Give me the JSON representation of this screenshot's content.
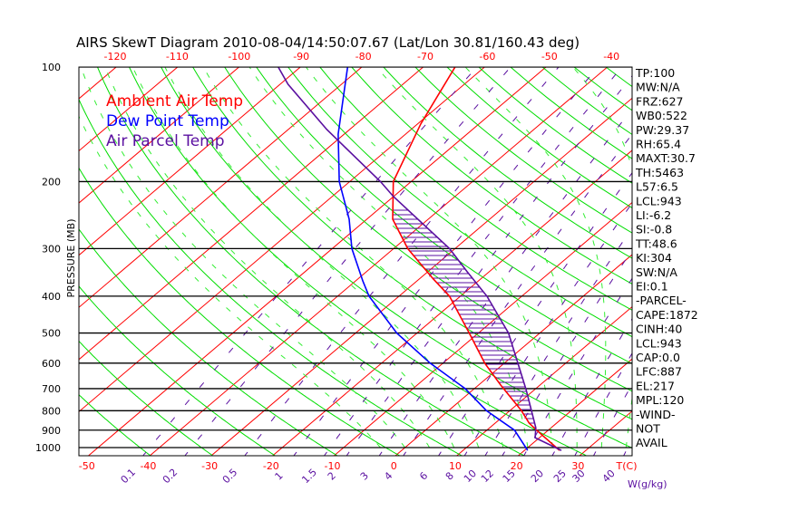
{
  "title": "AIRS SkewT Diagram 2010-08-04/14:50:07.67 (Lat/Lon 30.81/160.43 deg)",
  "colors": {
    "ambient": "#ff0000",
    "dewpoint": "#0000ff",
    "parcel": "#5a0fa0",
    "dry_adiabat": "#00dd00",
    "moist_adiabat": "#33ee33",
    "mixing_ratio": "#5a0fa0",
    "isotherm": "#ff0000",
    "isobar": "#000000"
  },
  "legend": [
    "Ambient Air Temp",
    "Dew Point Temp",
    "Air Parcel Temp"
  ],
  "indices": [
    "TP:100",
    "MW:N/A",
    "FRZ:627",
    "WB0:522",
    "PW:29.37",
    "RH:65.4",
    "MAXT:30.7",
    "TH:5463",
    "L57:6.5",
    "LCL:943",
    "LI:-6.2",
    "SI:-0.8",
    "TT:48.6",
    "KI:304",
    "SW:N/A",
    "EI:0.1",
    "-PARCEL-",
    "CAPE:1872",
    "CINH:40",
    "LCL:943",
    "CAP:0.0",
    "LFC:887",
    "EL:217",
    "MPL:120",
    "-WIND-",
    "NOT",
    "AVAIL"
  ],
  "chart_data": {
    "type": "line",
    "title": "AIRS SkewT Diagram 2010-08-04/14:50:07.67 (Lat/Lon 30.81/160.43 deg)",
    "ylabel": "PRESSURE (MB)",
    "xlabel": "T(C)",
    "y_scale": "log",
    "ylim": [
      1050,
      100
    ],
    "pressure_ticks": [
      "100",
      "200",
      "300",
      "400",
      "500",
      "600",
      "700",
      "800",
      "900",
      "1000"
    ],
    "pressure_values": [
      100,
      200,
      300,
      400,
      500,
      600,
      700,
      800,
      900,
      1000
    ],
    "bottom_temp_ticks": [
      "-50",
      "-40",
      "-30",
      "-20",
      "-10",
      "0",
      "10",
      "20",
      "30"
    ],
    "bottom_temp_values": [
      -50,
      -40,
      -30,
      -20,
      -10,
      0,
      10,
      20,
      30
    ],
    "top_temp_ticks": [
      "-120",
      "-110",
      "-100",
      "-90",
      "-80",
      "-70",
      "-60",
      "-50",
      "-40"
    ],
    "top_temp_values": [
      -120,
      -110,
      -100,
      -90,
      -80,
      -70,
      -60,
      -50,
      -40
    ],
    "mixing_ratio_label": "W(g/kg)",
    "mixing_ratio_ticks": [
      "0.1",
      "0.2",
      "0.5",
      "1",
      "1.5",
      "2",
      "3",
      "4",
      "6",
      "8",
      "10",
      "12",
      "15",
      "20",
      "25",
      "30",
      "40"
    ],
    "mixing_ratio_values": [
      0.1,
      0.2,
      0.5,
      1,
      1.5,
      2,
      3,
      4,
      6,
      8,
      10,
      12,
      15,
      20,
      25,
      30,
      40
    ],
    "series": [
      {
        "name": "Ambient Air Temp",
        "p": [
          1017,
          900,
          862,
          800,
          685,
          600,
          500,
          400,
          360,
          300,
          251,
          200,
          141,
          100
        ],
        "t": [
          25.7,
          18.1,
          15.5,
          11.9,
          3.6,
          -3.2,
          -11.5,
          -21.8,
          -27.8,
          -37.7,
          -45.8,
          -52.9,
          -59.5,
          -64.8
        ]
      },
      {
        "name": "Dew Point Temp",
        "p": [
          1017,
          900,
          800,
          700,
          600,
          500,
          400,
          365,
          300,
          251,
          200,
          150,
          111,
          100
        ],
        "t": [
          20.5,
          14.5,
          6.2,
          -1.5,
          -12.1,
          -23.3,
          -34.9,
          -38.8,
          -46.8,
          -52.9,
          -61.7,
          -71,
          -79.4,
          -82.3
        ]
      },
      {
        "name": "Air Parcel Temp",
        "p": [
          1017,
          942,
          887,
          704,
          500,
          400,
          345,
          300,
          219,
          200,
          146,
          111,
          100
        ],
        "t": [
          26,
          19.3,
          17.5,
          8.6,
          -5.1,
          -15.7,
          -23.6,
          -30.9,
          -50,
          -55,
          -73.7,
          -88.7,
          -93.6
        ]
      }
    ],
    "grid": true,
    "legend_position": "top-left"
  }
}
